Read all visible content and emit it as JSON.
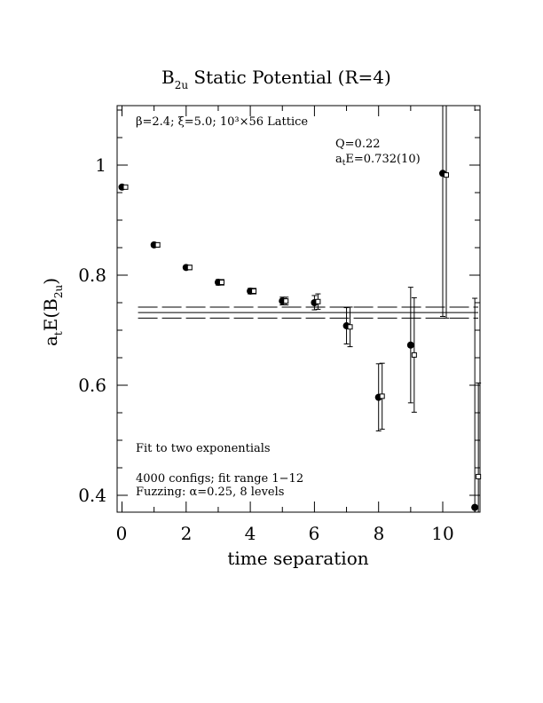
{
  "chart_data": {
    "type": "scatter",
    "title_main": "B",
    "title_sub": "2u",
    "title_rest": " Static Potential (R=4)",
    "xlabel": "time separation",
    "ylabel_main": "a",
    "ylabel_t": "t",
    "ylabel_mid": "E(B",
    "ylabel_sub": "2u",
    "ylabel_end": ")",
    "xlim": [
      0,
      11
    ],
    "ylim": [
      0.37,
      1.11
    ],
    "x_ticks": [
      0,
      2,
      4,
      6,
      8,
      10
    ],
    "x_tick_labels": [
      "0",
      "2",
      "4",
      "6",
      "8",
      "10"
    ],
    "y_ticks": [
      0.4,
      0.6,
      0.8,
      1.0
    ],
    "y_tick_labels": [
      "0.4",
      "0.6",
      "0.8",
      "1"
    ],
    "grid": false,
    "annotations": {
      "lattice": "β=2.4; ξ=5.0; 10³×56 Lattice",
      "q": "Q=0.22",
      "energy_main": "a",
      "energy_sub": "t",
      "energy_rest": "E=0.732(10)",
      "fit": "Fit to two exponentials",
      "configs": "4000 configs; fit range 1−12",
      "fuzzing": "Fuzzing: α=0.25, 8 levels"
    },
    "fit": {
      "value": 0.732,
      "upper": 0.742,
      "lower": 0.722,
      "t_range": [
        0.5,
        11
      ]
    },
    "series": [
      {
        "marker": "filled-circle",
        "points": [
          {
            "x": 0,
            "y": 0.96,
            "err": 0.003
          },
          {
            "x": 1,
            "y": 0.855,
            "err": 0.004
          },
          {
            "x": 2,
            "y": 0.814,
            "err": 0.004
          },
          {
            "x": 3,
            "y": 0.787,
            "err": 0.005
          },
          {
            "x": 4,
            "y": 0.771,
            "err": 0.005
          },
          {
            "x": 5,
            "y": 0.753,
            "err": 0.007
          },
          {
            "x": 6,
            "y": 0.75,
            "err": 0.013
          },
          {
            "x": 7,
            "y": 0.708,
            "err": 0.033
          },
          {
            "x": 8,
            "y": 0.578,
            "err": 0.061
          },
          {
            "x": 9,
            "y": 0.673,
            "err": 0.105
          },
          {
            "x": 10,
            "y": 0.985,
            "err": 0.26
          },
          {
            "x": 11,
            "y": 0.378,
            "err": 0.38
          }
        ]
      },
      {
        "marker": "open-square",
        "points": [
          {
            "x": 0,
            "y": 0.96,
            "err": 0.003
          },
          {
            "x": 1,
            "y": 0.855,
            "err": 0.004
          },
          {
            "x": 2,
            "y": 0.814,
            "err": 0.004
          },
          {
            "x": 3,
            "y": 0.787,
            "err": 0.005
          },
          {
            "x": 4,
            "y": 0.771,
            "err": 0.005
          },
          {
            "x": 5,
            "y": 0.753,
            "err": 0.007
          },
          {
            "x": 6,
            "y": 0.752,
            "err": 0.014
          },
          {
            "x": 7,
            "y": 0.706,
            "err": 0.036
          },
          {
            "x": 8,
            "y": 0.58,
            "err": 0.06
          },
          {
            "x": 9,
            "y": 0.655,
            "err": 0.104
          },
          {
            "x": 10,
            "y": 0.982,
            "err": 0.26
          },
          {
            "x": 11,
            "y": 0.434,
            "err": 0.17
          }
        ]
      }
    ]
  }
}
